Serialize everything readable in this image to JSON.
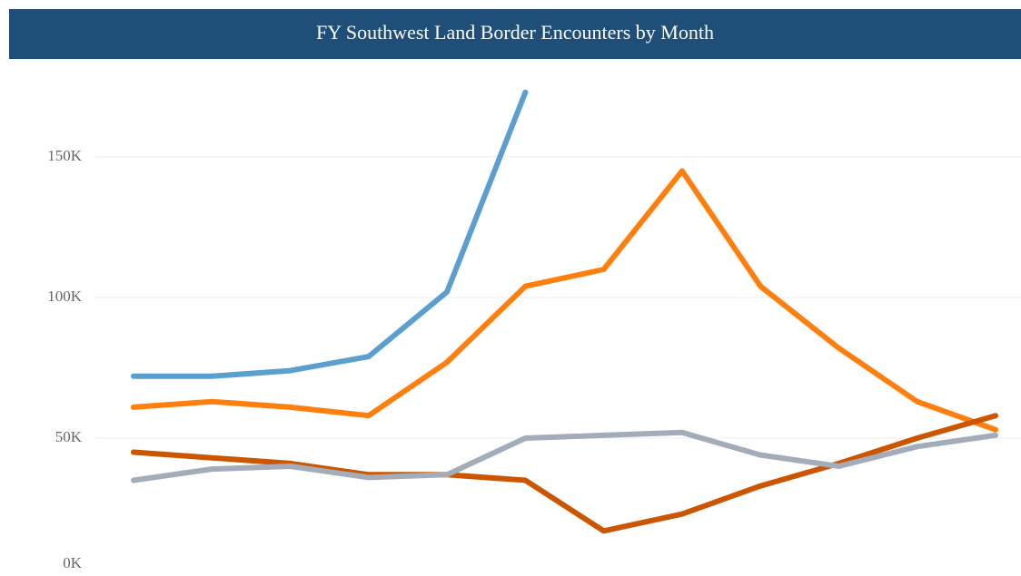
{
  "chart_data": {
    "type": "line",
    "title": "FY Southwest Land Border Encounters by Month",
    "categories": [
      null,
      null,
      null,
      null,
      null,
      null,
      null,
      null,
      null,
      null,
      null,
      null
    ],
    "series": [
      {
        "color": "#5b9fd0",
        "values": [
          72000,
          72000,
          74000,
          79000,
          102000,
          173000,
          null,
          null,
          null,
          null,
          null,
          null
        ]
      },
      {
        "color": "#ff7f0e",
        "values": [
          61000,
          63000,
          61000,
          58000,
          77000,
          104000,
          110000,
          145000,
          104000,
          82000,
          63000,
          53000
        ]
      },
      {
        "color": "#cc5500",
        "values": [
          45000,
          43000,
          41000,
          37000,
          37000,
          35000,
          17000,
          23000,
          33000,
          41000,
          50000,
          58000
        ]
      },
      {
        "color": "#a3acb9",
        "values": [
          35000,
          39000,
          40000,
          36000,
          37000,
          50000,
          51000,
          52000,
          44000,
          40000,
          47000,
          51000
        ]
      }
    ],
    "ylim": [
      0,
      185000
    ],
    "yticks": [
      {
        "value": 0,
        "label": "0K"
      },
      {
        "value": 50000,
        "label": "50K"
      },
      {
        "value": 100000,
        "label": "100K"
      },
      {
        "value": 150000,
        "label": "150K"
      }
    ],
    "grid": true
  }
}
